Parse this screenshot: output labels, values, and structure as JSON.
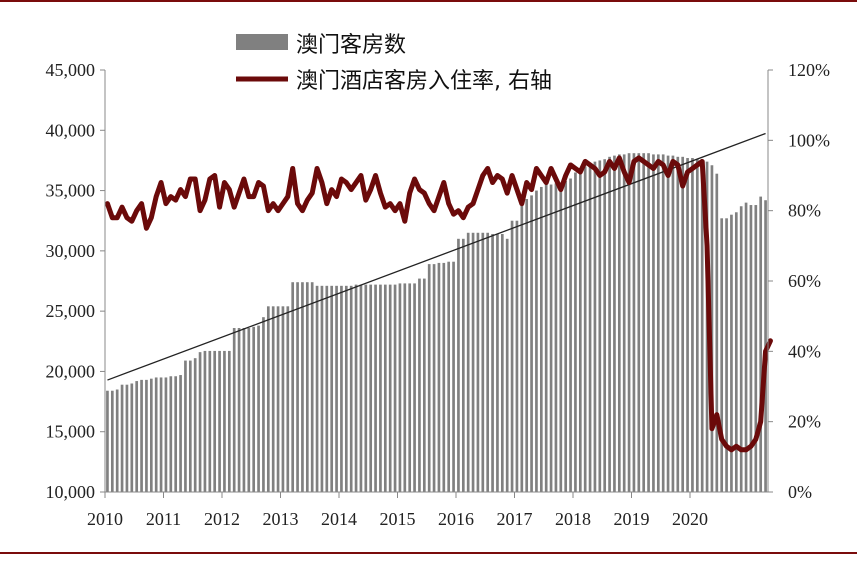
{
  "chart_data": {
    "type": "bar+line",
    "title": "",
    "xlabel": "",
    "ylabel": "",
    "y_left": {
      "ylim": [
        10000,
        45000
      ],
      "ticks": [
        "10,000",
        "15,000",
        "20,000",
        "25,000",
        "30,000",
        "35,000",
        "40,000",
        "45,000"
      ]
    },
    "y_right": {
      "ylim": [
        0,
        120
      ],
      "ticks": [
        "0%",
        "20%",
        "40%",
        "60%",
        "80%",
        "100%",
        "120%"
      ]
    },
    "x_ticks": [
      "2010",
      "2011",
      "2012",
      "2013",
      "2014",
      "2015",
      "2016",
      "2017",
      "2018",
      "2019",
      "2020"
    ],
    "grid": false,
    "legend_placement": "top",
    "series": [
      {
        "name": "澳门客房数",
        "kind": "bar",
        "axis": "left",
        "color": "#808080",
        "values": [
          18400,
          18400,
          18500,
          18900,
          18900,
          19000,
          19200,
          19300,
          19300,
          19400,
          19500,
          19500,
          19500,
          19600,
          19600,
          19700,
          20900,
          20900,
          21100,
          21600,
          21700,
          21700,
          21700,
          21700,
          21700,
          21700,
          23600,
          23600,
          23600,
          23600,
          23700,
          23800,
          24500,
          25400,
          25400,
          25400,
          25400,
          25400,
          27400,
          27400,
          27400,
          27400,
          27400,
          27100,
          27100,
          27100,
          27100,
          27100,
          27100,
          27100,
          27100,
          27200,
          27200,
          27200,
          27200,
          27200,
          27200,
          27200,
          27200,
          27200,
          27300,
          27300,
          27300,
          27300,
          27700,
          27700,
          28900,
          28900,
          29000,
          29000,
          29100,
          29100,
          31000,
          31000,
          31500,
          31500,
          31500,
          31500,
          31500,
          31400,
          31400,
          31400,
          31000,
          32500,
          32500,
          34000,
          34300,
          34600,
          35000,
          35300,
          35500,
          35500,
          35600,
          35600,
          35800,
          36000,
          36500,
          36800,
          37000,
          37200,
          37400,
          37500,
          37600,
          37800,
          37900,
          38000,
          38000,
          38100,
          38100,
          38100,
          38100,
          38100,
          38000,
          38000,
          38000,
          37900,
          37900,
          37800,
          37800,
          37700,
          37700,
          37600,
          37500,
          37400,
          37100,
          36400,
          32700,
          32700,
          33000,
          33200,
          33700,
          34000,
          33800,
          33800,
          34500,
          34200
        ]
      },
      {
        "name": "澳门酒店客房入住率, 右轴",
        "kind": "line",
        "axis": "right",
        "color": "#6b0a0a",
        "values": [
          82,
          78,
          78,
          81,
          78,
          77,
          80,
          82,
          75,
          78,
          84,
          88,
          82,
          84,
          83,
          86,
          84,
          89,
          89,
          80,
          83,
          89,
          90,
          81,
          88,
          86,
          81,
          85,
          89,
          84,
          84,
          88,
          87,
          80,
          82,
          80,
          82,
          84,
          92,
          82,
          80,
          83,
          85,
          92,
          88,
          82,
          86,
          84,
          89,
          88,
          86,
          88,
          90,
          83,
          86,
          90,
          85,
          81,
          82,
          80,
          82,
          77,
          85,
          89,
          86,
          85,
          82,
          80,
          84,
          88,
          82,
          79,
          80,
          78,
          81,
          82,
          86,
          90,
          92,
          88,
          90,
          89,
          85,
          90,
          86,
          82,
          88,
          86,
          92,
          90,
          88,
          92,
          89,
          86,
          90,
          93,
          92,
          91,
          94,
          93,
          92,
          90,
          91,
          94,
          92,
          95,
          91,
          88,
          94,
          95,
          94,
          93,
          92,
          94,
          93,
          90,
          94,
          93,
          87,
          91,
          92,
          93,
          94,
          70,
          18,
          22,
          15,
          13,
          12,
          13,
          12,
          12,
          13,
          15,
          20,
          40,
          43
        ]
      }
    ],
    "trendline": {
      "series": "澳门客房数",
      "kind": "linear",
      "color": "#222222"
    }
  }
}
